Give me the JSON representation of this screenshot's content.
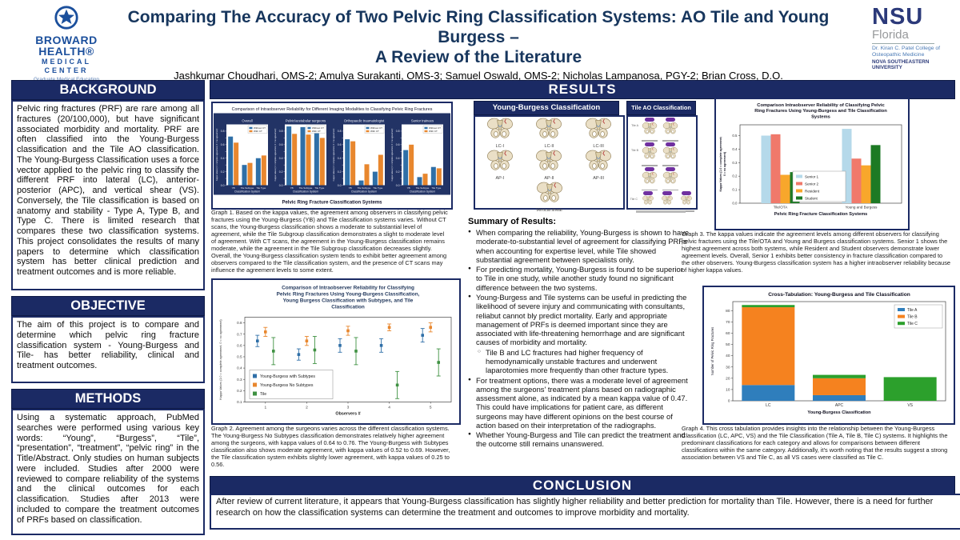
{
  "header": {
    "broward": {
      "line1": "BROWARD",
      "line2": "HEALTH®",
      "line3": "MEDICAL",
      "line4": "CENTER",
      "tagline": "Graduate Medical Education"
    },
    "title": "Comparing The Accuracy of Two Pelvic Ring Classification Systems: AO Tile and Young Burgess – A Review of the Literature",
    "title_lines": [
      "Comparing The Accuracy of Two Pelvic Ring Classification Systems: AO Tile and Young Burgess –",
      "A Review of the Literature"
    ],
    "authors": "Jashkumar Choudhari, OMS-2; Amulya Surakanti, OMS-3; Samuel Oswald, OMS-2; Nicholas Lampanosa, PGY-2; Brian Cross, D.O.",
    "nsu": {
      "acronym": "NSU",
      "state": "Florida",
      "college": "Dr. Kiran C. Patel College of Osteopathic Medicine",
      "university": "NOVA SOUTHEASTERN UNIVERSITY"
    }
  },
  "icons": {
    "broward_logo_star": "star-in-circle badge",
    "pelvis_diagram": "stylized pelvic ring illustration with fracture line",
    "tile_type_badge": "purple oval type badge"
  },
  "sections": {
    "background": {
      "title": "BACKGROUND",
      "body": "Pelvic ring fractures (PRF) are rare among all fractures (20/100,000), but have significant associated morbidity and mortality. PRF are often classified into the Young-Burgess classification and the Tile AO classification. The Young-Burgess Classification uses a force vector applied to the pelvic ring to classify the different PRF into lateral (LC), anterior-posterior (APC), and vertical shear (VS). Conversely, the Tile classification is based on anatomy and stability - Type A, Type B, and Type C. There is limited research that compares these two classification systems. This project consolidates the results of many papers to determine which classification system has better clinical prediction and treatment outcomes and is more reliable."
    },
    "objective": {
      "title": "OBJECTIVE",
      "body": "The aim of this project is to compare and determine which pelvic ring fracture classification system - Young-Burgess and Tile- has better reliability, clinical and treatment outcomes."
    },
    "methods": {
      "title": "METHODS",
      "body": "Using a systematic approach, PubMed searches were performed using various key words: “Young”, “Burgess”, “Tile”, “presentation”, “treatment”, “pelvic ring” in the Title/Abstract. Only studies on human subjects were included. Studies after 2000 were reviewed to compare reliability of the systems and the clinical outcomes for each classification. Studies after 2013 were included to compare the treatment outcomes of PRFs based on classification."
    },
    "results": {
      "title": "RESULTS"
    },
    "conclusion": {
      "title": "CONCLUSION",
      "body": "After review of current literature, it appears that Young-Burgess classification has slightly higher reliability and better prediction for mortality than Tile. However, there is a need for further research on how the classification systems can determine the treatment and outcomes to improve morbidity and mortality."
    }
  },
  "classification_panels": {
    "young_burgess": {
      "title": "Young-Burgess Classification",
      "labels": [
        "LC-I",
        "LC-II",
        "LC-III",
        "AP-I",
        "AP-II",
        "AP-III",
        "Vertical shear"
      ]
    },
    "tile_ao": {
      "title": "Tile AO Classification",
      "row_labels": [
        "Tile A",
        "Tile B",
        "Tile C"
      ],
      "rows": [
        2,
        2,
        2,
        3
      ]
    }
  },
  "summary": {
    "heading": "Summary of Results:",
    "bullets": [
      "When comparing the reliability, Young-Burgess is shown to have moderate-to-substantial level of agreement for classifying PRFs when accounting for expertise level, while Tile showed substantial agreement between specialists only.",
      "For predicting mortality, Young-Burgess is found to be superior to Tile in one study, while another study found no significant difference between the two systems.",
      "Young-Burgess and Tile systems can be useful in predicting the likelihood of severe injury and communicating with consultants, reliabut cannot bly predict mortality. Early and appropriate management of PRFs is deemed important since they are associated with life-threatening hemorrhage and are significant causes of morbidity and mortality.",
      "For treatment options, there was a moderate level of agreement among the surgeons' treatment plans based on radiographic assessment alone, as indicated by a mean kappa value of 0.47.  This could have implications for patient care, as different surgeons may have different opinions on the best course of action based on their interpretation of the radiographs.",
      "Whether Young-Burgess and Tile can predict the treatment and the outcome still remains unanswered."
    ],
    "sub_bullet": "Tile B and LC fractures had higher frequency of hemodynamically unstable fractures and underwent laparotomies more frequently than other fracture types."
  },
  "captions": {
    "graph1": "Graph 1. Based on the kappa values, the agreement among observers in classifying pelvic fractures using the Young-Burgess (YB) and Tile classification systems varies. Without CT scans, the Young-Burgess classification shows a moderate to substantial level of agreement, while the Tile Subgroup classification demonstrates a slight to moderate level of agreement. With CT scans, the agreement in the Young-Burgess classification remains moderate, while the agreement in the Tile Subgroup classification decreases slightly. Overall, the Young-Burgess classification system tends to exhibit better agreement among observers compared to the Tile classification system, and the presence of CT scans may influence the agreement levels to some extent.",
    "graph2": "Graph 2. Agreement among the surgeons varies across the different classification systems. The Young-Burgess No Subtypes classification demonstrates relatively higher agreement among the surgeons, with kappa values of 0.64 to 0.76. The Young-Burgess with Subtypes classification also shows moderate agreement, with kappa values of 0.52 to 0.69. However, the Tile classification system exhibits slightly lower agreement, with kappa values of 0.25 to 0.56.",
    "graph3": "Graph 3. The kappa values indicate the agreement levels among different observers for classifying pelvic fractures using the Tile/OTA and Young and Burgess classification systems. Senior 1 shows the highest agreement across both systems, while Resident and Student observers demonstrate lower agreement levels. Overall, Senior 1 exhibits better consistency in fracture classification compared to the other observers. Young-Burgess classification system has a higher intraobserver reliability because of higher kappa values.",
    "graph4": "Graph 4. This cross tabulation provides insights into the relationship between the Young-Burgess Classification (LC, APC, VS) and the Tile Classification (Tile A, Tile B, Tile C) systems. It highlights the predominant classifications for each category and allows for comparisons between different classifications within the same category. Additionally, it's worth noting that the results suggest a strong association between VS and Tile C, as all VS cases were classified as Tile C."
  },
  "chart_data": [
    {
      "id": "graph1",
      "type": "bar",
      "title": "Comparison of Intraobserver Reliability for Different Imaging Modalities to Classifying Pelvic Ring Fractures",
      "xlabel": "Pelvic Ring Fracture Classification Systems",
      "subplot_xlabel": "Classification System",
      "ylabel": "Kappa values (1 = complete agreement, 0 = no agreement)",
      "categories": [
        "YB",
        "Tile Subtype",
        "Tile Type"
      ],
      "legend": [
        "Without CT",
        "With CT"
      ],
      "colors": [
        "#2f6fa7",
        "#e8872e"
      ],
      "ylim": [
        0,
        0.9
      ],
      "subplots": [
        {
          "name": "Overall",
          "series": [
            [
              0.72,
              0.3,
              0.4
            ],
            [
              0.63,
              0.33,
              0.44
            ]
          ]
        },
        {
          "name": "Pelvic/acetabular surgeons",
          "series": [
            [
              0.87,
              0.86,
              0.87
            ],
            [
              0.76,
              0.75,
              0.7
            ]
          ]
        },
        {
          "name": "Orthopaedic traumatologist",
          "series": [
            [
              0.68,
              0.07,
              0.2
            ],
            [
              0.65,
              0.31,
              0.45
            ]
          ]
        },
        {
          "name": "Senior trainees",
          "series": [
            [
              0.52,
              0.12,
              0.27
            ],
            [
              0.6,
              0.17,
              0.25
            ]
          ]
        }
      ]
    },
    {
      "id": "graph2",
      "type": "scatter",
      "title_lines": [
        "Comparison of Intraobserver Reliability for Classifying",
        "Pelvic Ring Fractures Using Young-Burgess Classification,",
        "Young Burgess Classification with Subtypes, and Tile",
        "Classification"
      ],
      "xlabel": "Observers #",
      "ylabel": "Kappa Values (1.0 = complete agreement, 0 = no agreement)",
      "x": [
        1,
        2,
        3,
        4,
        5
      ],
      "ylim": [
        0.1,
        0.85
      ],
      "legend_position": "lower left",
      "series": [
        {
          "name": "Young-Burgess with Subtypes",
          "color": "#2f6fa7",
          "values": [
            0.64,
            0.52,
            0.6,
            0.6,
            0.69
          ],
          "err": [
            0.05,
            0.05,
            0.06,
            0.06,
            0.06
          ]
        },
        {
          "name": "Young-Burgess No Subtypes",
          "color": "#e8872e",
          "values": [
            0.72,
            0.64,
            0.73,
            0.76,
            0.76
          ],
          "err": [
            0.04,
            0.04,
            0.04,
            0.03,
            0.04
          ]
        },
        {
          "name": "Tile",
          "color": "#3f9142",
          "values": [
            0.55,
            0.56,
            0.55,
            0.25,
            0.45
          ],
          "err": [
            0.12,
            0.12,
            0.12,
            0.12,
            0.12
          ]
        }
      ]
    },
    {
      "id": "graph3",
      "type": "bar",
      "title_lines": [
        "Comparison Intraobserver Reliability of Classifying Pelvic",
        "Ring Fractures Using Young-Burgess and Tile Classification",
        "Systems"
      ],
      "xlabel": "Pelvic Ring Fracture Classification Systems",
      "ylabel_lines": [
        "Kappa Values (1.0 = complete agreement;",
        "0 = no agreement)"
      ],
      "categories": [
        "Tile/OTA",
        "Young and Burgess"
      ],
      "ylim": [
        0,
        0.58
      ],
      "series": [
        {
          "name": "Senior 1",
          "color": "#b5d9ea",
          "values": [
            0.5,
            0.55
          ]
        },
        {
          "name": "Senior 2",
          "color": "#f0796b",
          "values": [
            0.51,
            0.33
          ]
        },
        {
          "name": "Resident",
          "color": "#f8a72b",
          "values": [
            0.21,
            0.28
          ]
        },
        {
          "name": "Student",
          "color": "#1d7a24",
          "values": [
            0.23,
            0.43
          ]
        }
      ]
    },
    {
      "id": "graph4",
      "type": "stacked-bar",
      "title": "Cross-Tabulation: Young-Burgess and Tile Classification",
      "xlabel": "Young-Burgess Classification",
      "ylabel": "Number of Pelvic Ring Fractures",
      "categories": [
        "LC",
        "APC",
        "VS"
      ],
      "ylim": [
        0,
        88
      ],
      "yticks": [
        0,
        10,
        20,
        30,
        40,
        50,
        60,
        70,
        80
      ],
      "series": [
        {
          "name": "Tile A",
          "color": "#2f7ebc",
          "values": [
            14,
            5,
            0
          ]
        },
        {
          "name": "Tile B",
          "color": "#f5821f",
          "values": [
            69,
            15,
            0
          ]
        },
        {
          "name": "Tile C",
          "color": "#2ca02c",
          "values": [
            2,
            3,
            21
          ]
        }
      ]
    }
  ]
}
